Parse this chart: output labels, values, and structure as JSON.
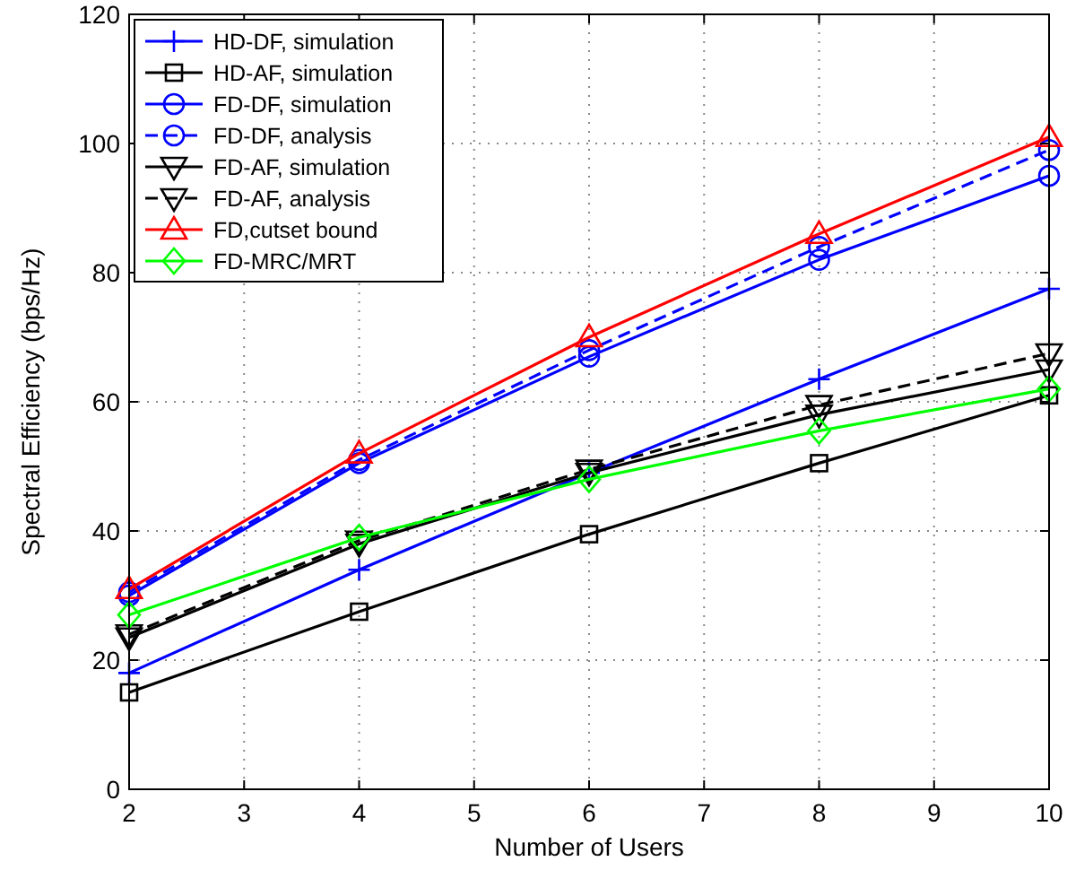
{
  "chart_data": {
    "type": "line",
    "xlabel": "Number of Users",
    "ylabel": "Spectral Efficiency (bps/Hz)",
    "x": [
      2,
      4,
      6,
      8,
      10
    ],
    "xlim": [
      2,
      10
    ],
    "xticks": [
      2,
      3,
      4,
      5,
      6,
      7,
      8,
      9,
      10
    ],
    "ylim": [
      0,
      120
    ],
    "yticks": [
      0,
      20,
      40,
      60,
      80,
      100,
      120
    ],
    "grid": true,
    "legend": "top left",
    "series": [
      {
        "name": "HD-DF, simulation",
        "color": "#0000ff",
        "marker": "cross",
        "line_style": "solid",
        "values": [
          18,
          34,
          49,
          63.5,
          77.5
        ]
      },
      {
        "name": "HD-AF, simulation",
        "color": "#000000",
        "marker": "square",
        "line_style": "solid",
        "values": [
          15,
          27.5,
          39.5,
          50.5,
          61
        ]
      },
      {
        "name": "FD-DF, simulation",
        "color": "#0000ff",
        "marker": "circle",
        "line_style": "solid",
        "values": [
          30,
          50.5,
          67,
          82,
          95
        ]
      },
      {
        "name": "FD-DF, analysis",
        "color": "#0000ff",
        "marker": "circle",
        "line_style": "dashed",
        "values": [
          30.5,
          51,
          68,
          84,
          99
        ]
      },
      {
        "name": "FD-AF, simulation",
        "color": "#000000",
        "marker": "triangle-down",
        "line_style": "solid",
        "values": [
          23.5,
          38,
          49,
          58,
          65
        ]
      },
      {
        "name": "FD-AF, analysis",
        "color": "#000000",
        "marker": "triangle-down",
        "line_style": "dashed",
        "values": [
          24,
          38.5,
          49.5,
          59.5,
          67.5
        ]
      },
      {
        "name": "FD,cutset bound",
        "color": "#ff0000",
        "marker": "triangle",
        "line_style": "solid",
        "values": [
          31,
          52,
          70,
          86,
          101
        ]
      },
      {
        "name": "FD-MRC/MRT",
        "color": "#00ff00",
        "marker": "diamond",
        "line_style": "solid",
        "values": [
          27,
          39,
          48,
          55.5,
          62
        ]
      }
    ]
  }
}
